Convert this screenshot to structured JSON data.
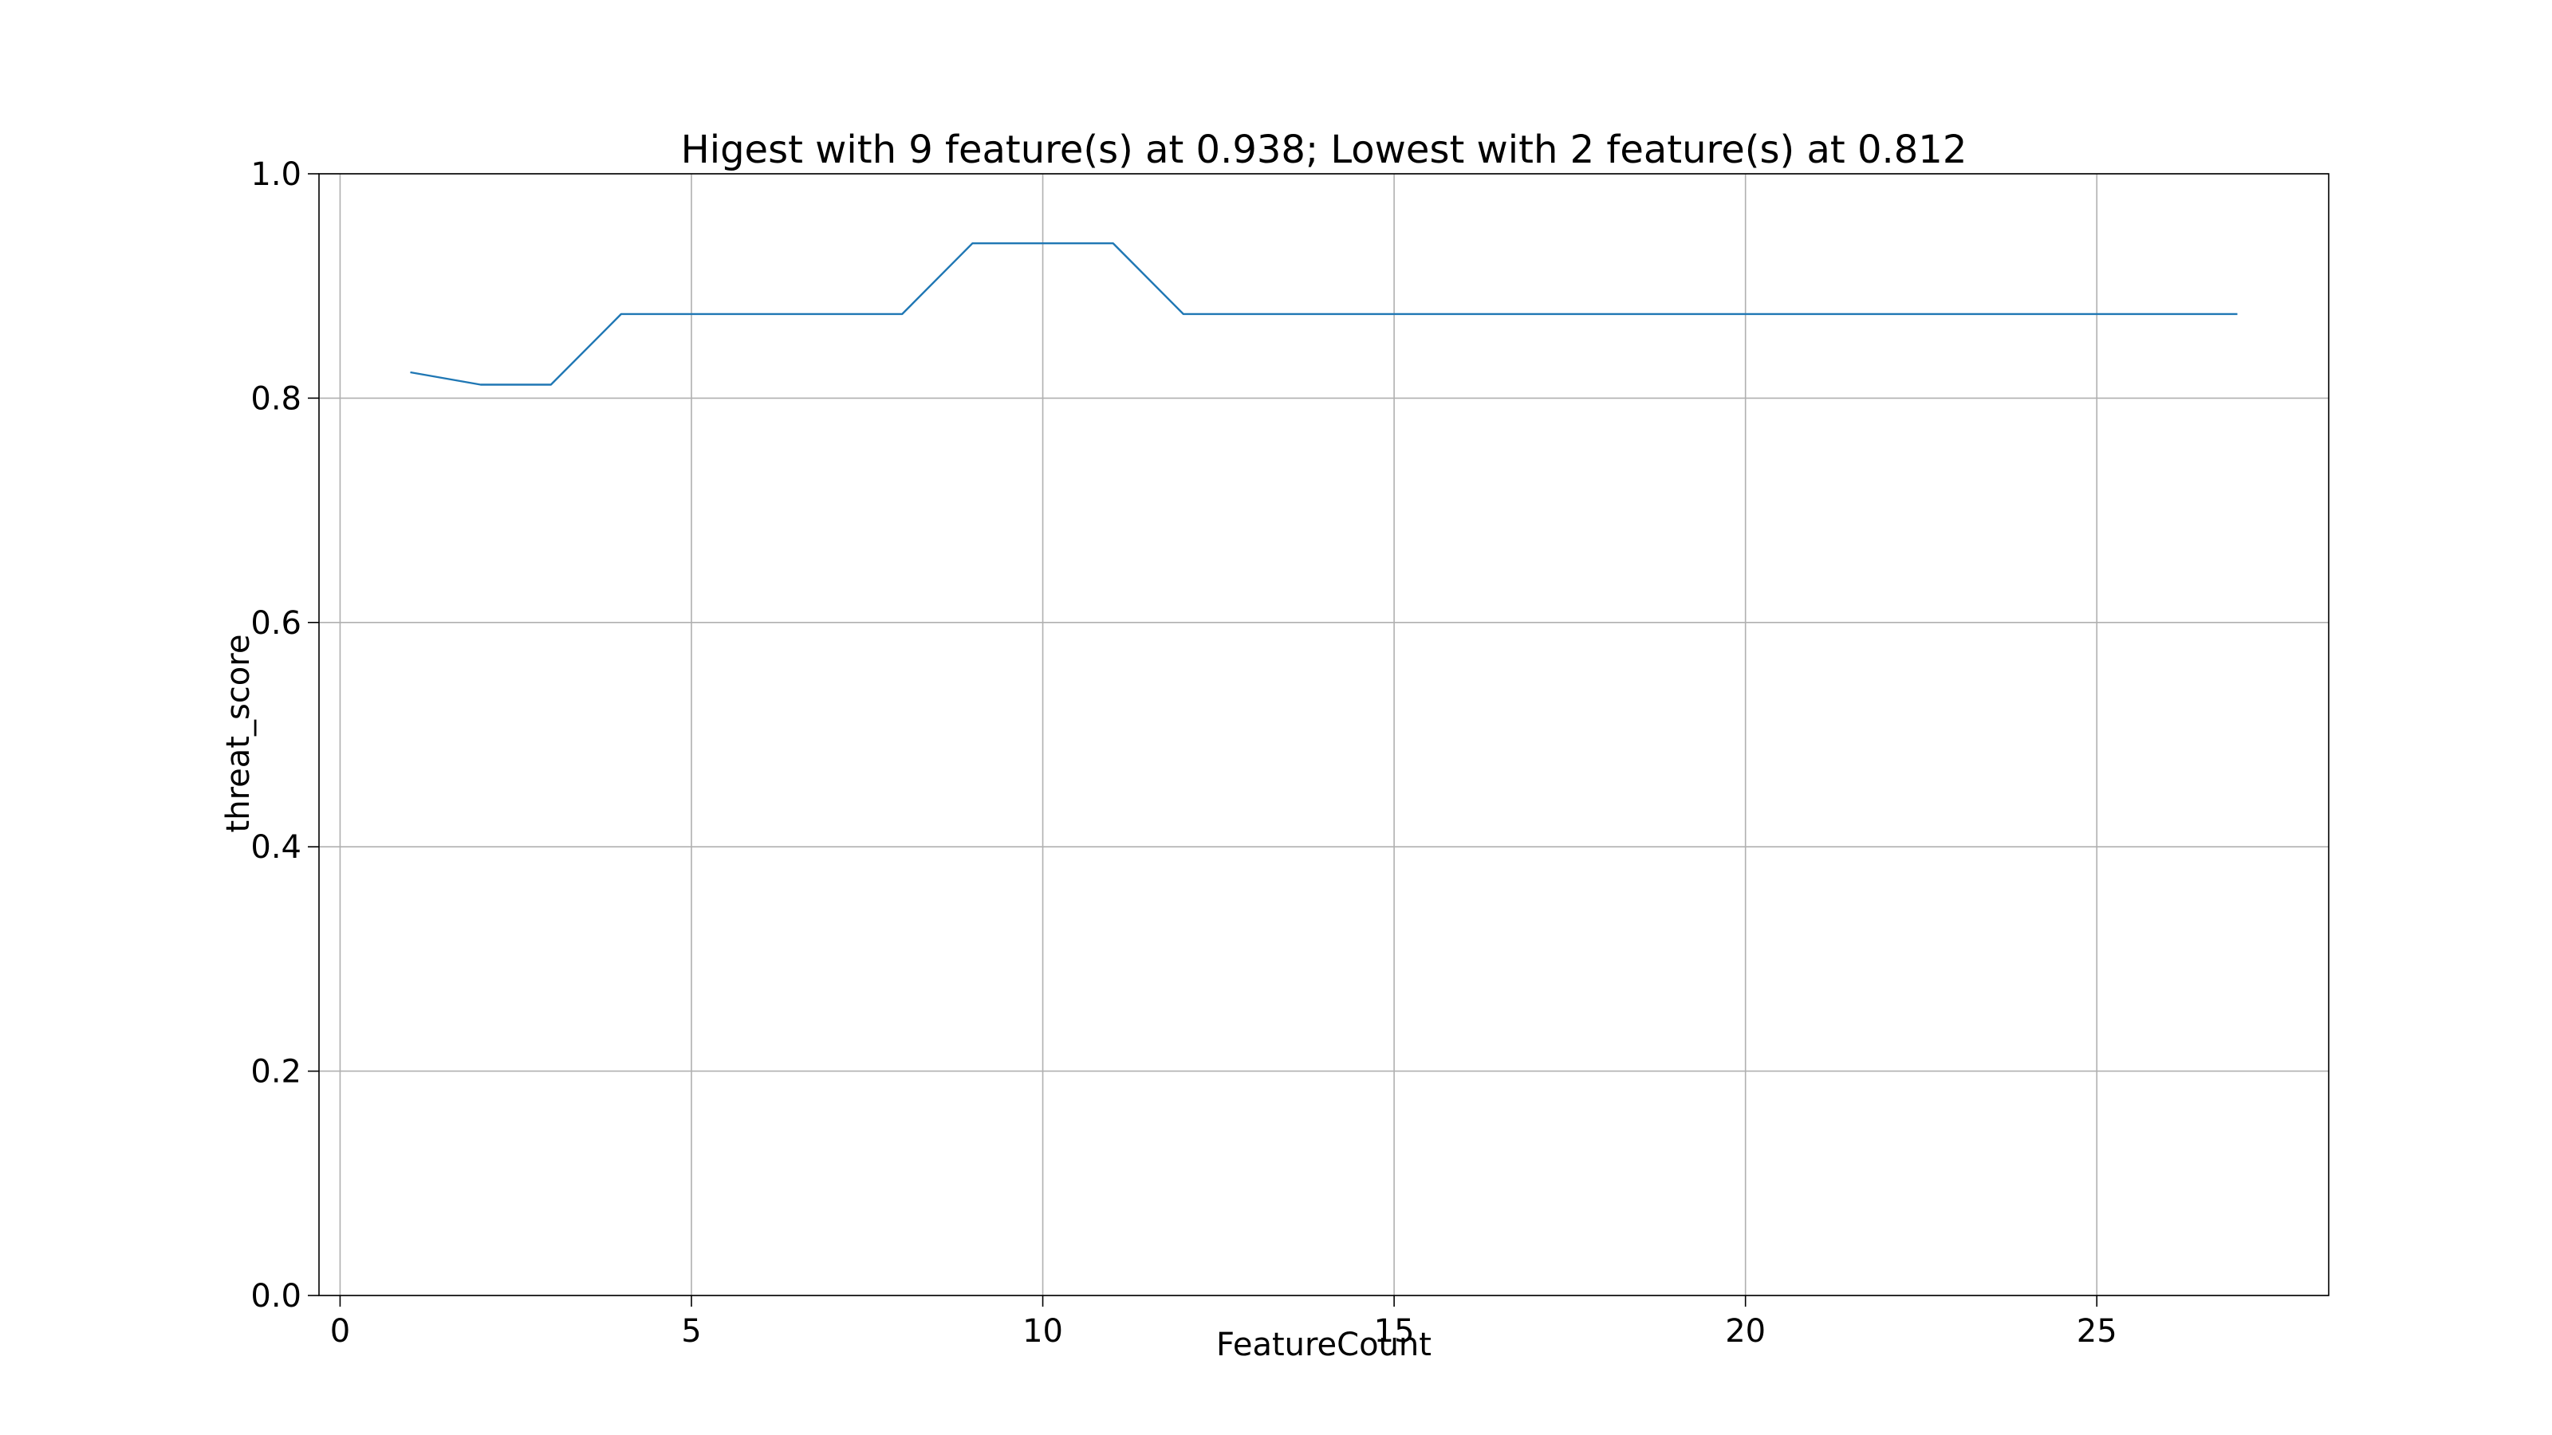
{
  "chart_data": {
    "type": "line",
    "title": "Higest with 9 feature(s) at 0.938; Lowest with 2 feature(s) at 0.812",
    "xlabel": "FeatureCount",
    "ylabel": "threat_score",
    "xlim": [
      -0.3,
      28.3
    ],
    "ylim": [
      0.0,
      1.0
    ],
    "xticks": [
      0,
      5,
      10,
      15,
      20,
      25
    ],
    "xtick_labels": [
      "0",
      "5",
      "10",
      "15",
      "20",
      "25"
    ],
    "yticks": [
      0.0,
      0.2,
      0.4,
      0.6,
      0.8,
      1.0
    ],
    "ytick_labels": [
      "0.0",
      "0.2",
      "0.4",
      "0.6",
      "0.8",
      "1.0"
    ],
    "grid": true,
    "series": [
      {
        "color": "#1f77b4",
        "x": [
          1,
          2,
          3,
          4,
          5,
          6,
          7,
          8,
          9,
          10,
          11,
          12,
          13,
          14,
          15,
          16,
          17,
          18,
          19,
          20,
          21,
          22,
          23,
          24,
          25,
          26,
          27
        ],
        "y": [
          0.823,
          0.812,
          0.812,
          0.875,
          0.875,
          0.875,
          0.875,
          0.875,
          0.938,
          0.938,
          0.938,
          0.875,
          0.875,
          0.875,
          0.875,
          0.875,
          0.875,
          0.875,
          0.875,
          0.875,
          0.875,
          0.875,
          0.875,
          0.875,
          0.875,
          0.875,
          0.875
        ]
      }
    ]
  }
}
